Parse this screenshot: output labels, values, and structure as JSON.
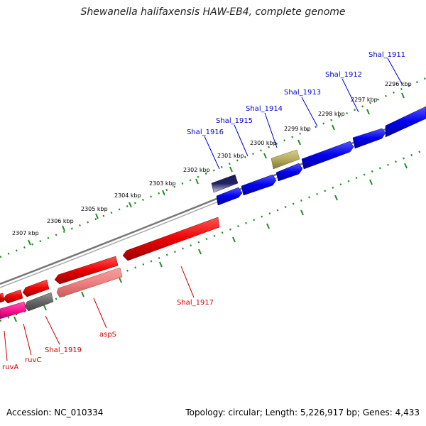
{
  "title": "Shewanella halifaxensis HAW-EB4, complete genome",
  "footer": {
    "accession": "Accession: NC_010334",
    "summary": "Topology: circular; Length: 5,226,917 bp; Genes: 4,433"
  },
  "ticks": [
    "2296 kbp",
    "2297 kbp",
    "2298 kbp",
    "2299 kbp",
    "2300 kbp",
    "2301 kbp",
    "2302 kbp",
    "2303 kbp",
    "2304 kbp",
    "2305 kbp",
    "2306 kbp",
    "2307 kbp"
  ],
  "genes_forward": [
    {
      "name": "Shal_1911",
      "color": "#0000cc"
    },
    {
      "name": "Shal_1912",
      "color": "#0000cc"
    },
    {
      "name": "Shal_1913",
      "color": "#0000cc"
    },
    {
      "name": "Shal_1914",
      "color": "#0000cc"
    },
    {
      "name": "Shal_1915",
      "color": "#0000cc"
    },
    {
      "name": "Shal_1916",
      "color": "#0000cc"
    }
  ],
  "genes_reverse": [
    {
      "name": "Shal_1917",
      "color": "#cc0000"
    },
    {
      "name": "aspS",
      "color": "#cc0000"
    },
    {
      "name": "Shal_1919",
      "color": "#cc0000"
    },
    {
      "name": "ruvC",
      "color": "#cc0000"
    },
    {
      "name": "ruvA",
      "color": "#cc0000"
    }
  ],
  "colors": {
    "forward_cds": "#0000ee",
    "reverse_cds": "#ee0000",
    "trna_like": "#b5ac5e",
    "pseudo_gene": "#555566",
    "gray_feature": "#666666",
    "magenta_feature": "#ff1493",
    "light_red_feature": "#f08080",
    "backbone": "#888888",
    "tick_color": "#228b22"
  }
}
